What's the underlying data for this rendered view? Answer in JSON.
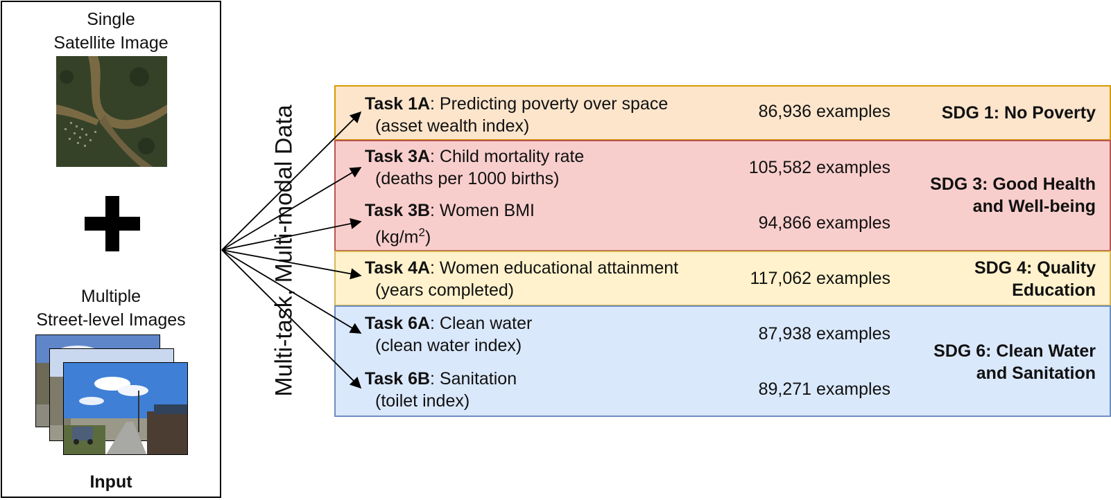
{
  "input": {
    "satellite_caption_line1": "Single",
    "satellite_caption_line2": "Satellite Image",
    "street_caption_line1": "Multiple",
    "street_caption_line2": "Street-level Images",
    "label": "Input"
  },
  "vertical_label": "Multi-task, Multi-modal Data",
  "colors": {
    "sdg1_fill": "#fde5cc",
    "sdg1_border": "#d79b00",
    "sdg3_fill": "#f8cecc",
    "sdg3_border": "#b85450",
    "sdg4_fill": "#fff2cc",
    "sdg4_border": "#d6b656",
    "sdg6_fill": "#dae8fc",
    "sdg6_border": "#6c8ebf"
  },
  "tasks": [
    {
      "id": "Task 1A",
      "desc": ": Predicting poverty over space",
      "unit": "(asset wealth index)",
      "count": "86,936 examples"
    },
    {
      "id": "Task 3A",
      "desc": ": Child mortality rate",
      "unit": "(deaths per 1000 births)",
      "count": "105,582 examples"
    },
    {
      "id": "Task 3B",
      "desc": ": Women BMI",
      "unit_prefix": "(kg/m",
      "unit_sup": "2",
      "unit_suffix": ")",
      "count": "94,866 examples"
    },
    {
      "id": "Task 4A",
      "desc": ": Women educational attainment",
      "unit": "(years completed)",
      "count": "117,062 examples"
    },
    {
      "id": "Task 6A",
      "desc": ": Clean water",
      "unit": "(clean water index)",
      "count": "87,938 examples"
    },
    {
      "id": "Task 6B",
      "desc": ": Sanitation",
      "unit": "(toilet index)",
      "count": "89,271 examples"
    }
  ],
  "sdgs": [
    {
      "line1": "SDG 1: No Poverty"
    },
    {
      "line1": "SDG 3: Good Health",
      "line2": "and Well-being"
    },
    {
      "line1": "SDG 4: Quality",
      "line2": "Education"
    },
    {
      "line1": "SDG 6: Clean Water",
      "line2": "and Sanitation"
    }
  ]
}
